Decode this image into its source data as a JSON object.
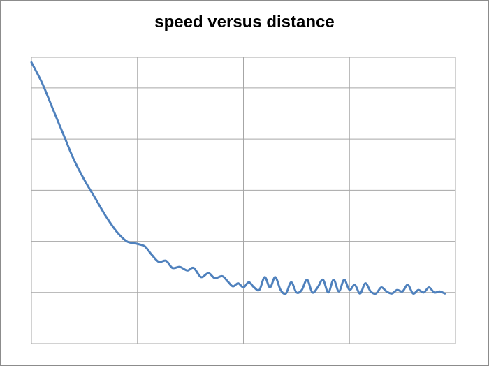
{
  "chart_data": {
    "type": "line",
    "title": "speed versus distance",
    "xlabel": "",
    "ylabel": "",
    "xlim": [
      0,
      4
    ],
    "ylim": [
      0,
      5.6
    ],
    "x_gridlines": [
      1,
      2,
      3
    ],
    "y_gridlines": [
      1,
      2,
      3,
      4,
      5
    ],
    "grid": true,
    "tick_labels_visible": false,
    "legend": "none",
    "line_color": "#4F81BD",
    "grid_color": "#A6A6A6",
    "series": [
      {
        "points": [
          [
            0.0,
            5.5
          ],
          [
            0.1,
            5.1
          ],
          [
            0.2,
            4.6
          ],
          [
            0.3,
            4.1
          ],
          [
            0.4,
            3.6
          ],
          [
            0.5,
            3.2
          ],
          [
            0.6,
            2.85
          ],
          [
            0.7,
            2.5
          ],
          [
            0.8,
            2.2
          ],
          [
            0.9,
            2.0
          ],
          [
            1.0,
            1.95
          ],
          [
            1.07,
            1.9
          ],
          [
            1.13,
            1.75
          ],
          [
            1.2,
            1.6
          ],
          [
            1.27,
            1.62
          ],
          [
            1.33,
            1.48
          ],
          [
            1.4,
            1.5
          ],
          [
            1.47,
            1.43
          ],
          [
            1.53,
            1.48
          ],
          [
            1.6,
            1.3
          ],
          [
            1.67,
            1.38
          ],
          [
            1.73,
            1.28
          ],
          [
            1.8,
            1.32
          ],
          [
            1.85,
            1.22
          ],
          [
            1.9,
            1.12
          ],
          [
            1.95,
            1.18
          ],
          [
            2.0,
            1.1
          ],
          [
            2.05,
            1.2
          ],
          [
            2.1,
            1.1
          ],
          [
            2.15,
            1.05
          ],
          [
            2.2,
            1.3
          ],
          [
            2.25,
            1.1
          ],
          [
            2.3,
            1.3
          ],
          [
            2.35,
            1.05
          ],
          [
            2.4,
            0.98
          ],
          [
            2.45,
            1.2
          ],
          [
            2.5,
            1.0
          ],
          [
            2.55,
            1.05
          ],
          [
            2.6,
            1.25
          ],
          [
            2.65,
            1.0
          ],
          [
            2.7,
            1.1
          ],
          [
            2.75,
            1.25
          ],
          [
            2.8,
            1.0
          ],
          [
            2.85,
            1.25
          ],
          [
            2.9,
            1.02
          ],
          [
            2.95,
            1.25
          ],
          [
            3.0,
            1.05
          ],
          [
            3.05,
            1.15
          ],
          [
            3.1,
            0.98
          ],
          [
            3.15,
            1.18
          ],
          [
            3.2,
            1.02
          ],
          [
            3.25,
            0.98
          ],
          [
            3.3,
            1.1
          ],
          [
            3.35,
            1.02
          ],
          [
            3.4,
            0.98
          ],
          [
            3.45,
            1.05
          ],
          [
            3.5,
            1.02
          ],
          [
            3.55,
            1.15
          ],
          [
            3.6,
            0.98
          ],
          [
            3.65,
            1.05
          ],
          [
            3.7,
            1.0
          ],
          [
            3.75,
            1.1
          ],
          [
            3.8,
            1.0
          ],
          [
            3.85,
            1.02
          ],
          [
            3.9,
            0.98
          ]
        ]
      }
    ]
  }
}
